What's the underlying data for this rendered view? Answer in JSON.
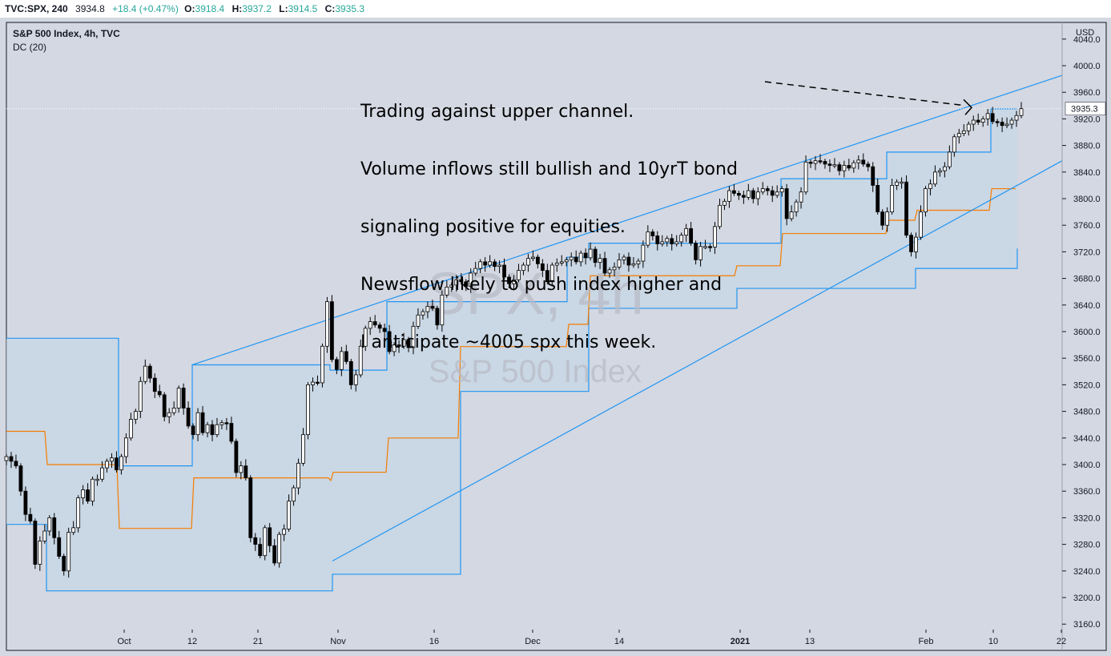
{
  "header": {
    "symbol": "TVC:SPX, 240",
    "last": "3934.8",
    "change": "+18.4 (+0.47%)",
    "open_label": "O:",
    "open": "3918.4",
    "high_label": "H:",
    "high": "3937.2",
    "low_label": "L:",
    "low": "3914.5",
    "close_label": "C:",
    "close": "3935.3"
  },
  "legend": {
    "title": "S&P 500 Index, 4h, TVC",
    "indicator": "DC (20)"
  },
  "watermark": {
    "line1": "SPX, 4h",
    "line2": "S&P 500 Index"
  },
  "annotation": {
    "lines": [
      "Trading against upper channel.",
      "Volume inflows still bullish and 10yrT bond",
      "signaling positive for equities.",
      "Newsflow likely to push index higher and",
      "I anticipate ~4005 spx this week."
    ]
  },
  "colors": {
    "background": "#d4d8e2",
    "channel_fill": "#c6d7e6",
    "donchian_band": "#2196f3",
    "donchian_mid": "#f57c00",
    "trendline": "#2196f3",
    "candle_up": "#ffffff",
    "candle_down": "#000000"
  },
  "chart_data": {
    "type": "candlestick",
    "title": "S&P 500 Index, 4h, TVC",
    "indicator": "Donchian Channel (20)",
    "currency": "USD",
    "current_price": 3935.3,
    "price_axis": [
      4040.0,
      4000.0,
      3960.0,
      3920.0,
      3880.0,
      3840.0,
      3800.0,
      3760.0,
      3720.0,
      3680.0,
      3640.0,
      3600.0,
      3560.0,
      3520.0,
      3480.0,
      3440.0,
      3400.0,
      3360.0,
      3320.0,
      3280.0,
      3240.0,
      3200.0,
      3160.0
    ],
    "ylim": [
      3150,
      4045
    ],
    "time_axis": [
      "Oct",
      "12",
      "21",
      "Nov",
      "16",
      "Dec",
      "14",
      "2021",
      "13",
      "Feb",
      "10",
      "22"
    ],
    "grid": false,
    "closes": [
      3412,
      3405,
      3398,
      3360,
      3325,
      3315,
      3250,
      3285,
      3300,
      3320,
      3290,
      3262,
      3240,
      3298,
      3305,
      3350,
      3362,
      3345,
      3378,
      3378,
      3395,
      3405,
      3410,
      3392,
      3412,
      3440,
      3468,
      3480,
      3525,
      3548,
      3530,
      3510,
      3505,
      3472,
      3478,
      3485,
      3515,
      3485,
      3458,
      3445,
      3478,
      3448,
      3460,
      3445,
      3460,
      3463,
      3462,
      3435,
      3388,
      3398,
      3380,
      3290,
      3280,
      3263,
      3305,
      3278,
      3252,
      3295,
      3303,
      3345,
      3365,
      3402,
      3445,
      3520,
      3524,
      3523,
      3578,
      3645,
      3558,
      3543,
      3570,
      3555,
      3520,
      3535,
      3578,
      3605,
      3615,
      3610,
      3605,
      3600,
      3570,
      3580,
      3578,
      3588,
      3576,
      3608,
      3625,
      3630,
      3638,
      3635,
      3610,
      3655,
      3667,
      3670,
      3678,
      3675,
      3668,
      3688,
      3695,
      3705,
      3700,
      3705,
      3698,
      3700,
      3682,
      3672,
      3678,
      3692,
      3700,
      3710,
      3712,
      3702,
      3692,
      3675,
      3700,
      3703,
      3705,
      3708,
      3712,
      3705,
      3718,
      3711,
      3724,
      3704,
      3710,
      3688,
      3693,
      3697,
      3708,
      3712,
      3700,
      3702,
      3706,
      3730,
      3750,
      3744,
      3732,
      3735,
      3740,
      3732,
      3735,
      3745,
      3755,
      3733,
      3708,
      3728,
      3728,
      3727,
      3758,
      3790,
      3796,
      3812,
      3808,
      3805,
      3802,
      3812,
      3800,
      3810,
      3815,
      3812,
      3805,
      3810,
      3815,
      3770,
      3780,
      3795,
      3810,
      3855,
      3853,
      3857,
      3856,
      3852,
      3850,
      3851,
      3842,
      3850,
      3846,
      3854,
      3858,
      3852,
      3848,
      3820,
      3780,
      3760,
      3780,
      3820,
      3825,
      3825,
      3745,
      3720,
      3742,
      3780,
      3815,
      3822,
      3840,
      3842,
      3848,
      3870,
      3893,
      3898,
      3902,
      3912,
      3918,
      3915,
      3920,
      3928,
      3916,
      3915,
      3910,
      3912,
      3918,
      3925,
      3935.3
    ],
    "donchian_upper_steps": [
      [
        3590,
        "Sep 22"
      ],
      [
        3398,
        "Oct 1"
      ],
      [
        3550,
        "Oct 12"
      ],
      [
        3542,
        "Oct 29"
      ],
      [
        3645,
        "Nov 10"
      ],
      [
        3712,
        "Dec 2"
      ],
      [
        3733,
        "Dec 9"
      ],
      [
        3830,
        "Jan 8"
      ],
      [
        3870,
        "Jan 22"
      ],
      [
        3935,
        "Feb 10"
      ]
    ],
    "donchian_lower_steps": [
      [
        3310,
        "Sep 22"
      ],
      [
        3210,
        "Sep 24"
      ],
      [
        3235,
        "Oct 30"
      ],
      [
        3510,
        "Nov 13"
      ],
      [
        3635,
        "Dec 9"
      ],
      [
        3665,
        "Jan 4"
      ],
      [
        3695,
        "Feb 1"
      ],
      [
        3725,
        "Feb 12"
      ]
    ],
    "upper_trendline": [
      [
        3550,
        "Oct 12"
      ],
      [
        3963,
        "Feb 12"
      ]
    ],
    "lower_trendline": [
      [
        3255,
        "Oct 30"
      ],
      [
        3820,
        "Feb 12"
      ]
    ],
    "annotation_target": "upper channel near 3935"
  }
}
